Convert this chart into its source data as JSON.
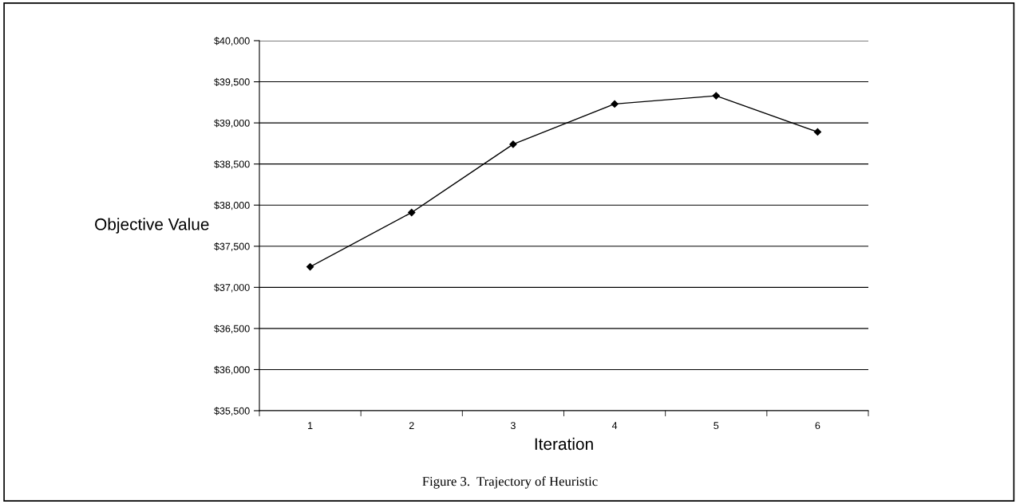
{
  "chart_data": {
    "type": "line",
    "xlabel": "Iteration",
    "ylabel": "Objective Value",
    "categories": [
      "1",
      "2",
      "3",
      "4",
      "5",
      "6"
    ],
    "series": [
      {
        "color": "#000000",
        "values": [
          37250,
          37910,
          38740,
          39230,
          39330,
          38890
        ]
      }
    ],
    "ylim": [
      35500,
      40000
    ],
    "yticks": [
      {
        "value": 35500,
        "label": "$35,500"
      },
      {
        "value": 36000,
        "label": "$36,000"
      },
      {
        "value": 36500,
        "label": "$36,500"
      },
      {
        "value": 37000,
        "label": "$37,000"
      },
      {
        "value": 37500,
        "label": "$37,500"
      },
      {
        "value": 38000,
        "label": "$38,000"
      },
      {
        "value": 38500,
        "label": "$38,500"
      },
      {
        "value": 39000,
        "label": "$39,000"
      },
      {
        "value": 39500,
        "label": "$39,500"
      },
      {
        "value": 40000,
        "label": "$40,000"
      }
    ],
    "grid": "y",
    "marker": "diamond",
    "line_style": "solid",
    "legend": false,
    "annotations": [
      "Figure 3.  Trajectory of Heuristic"
    ]
  }
}
